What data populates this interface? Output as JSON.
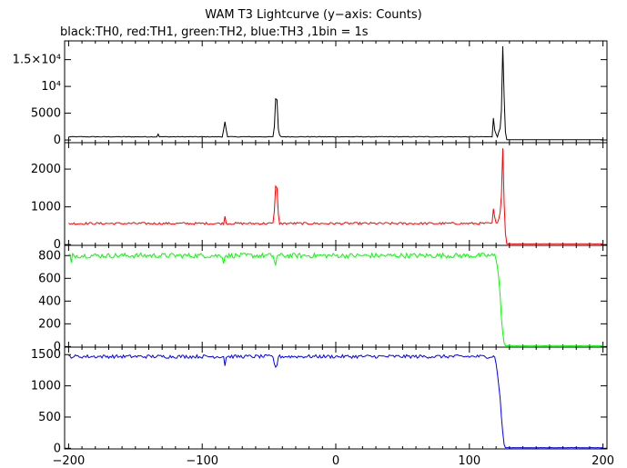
{
  "chart_data": {
    "type": "line",
    "title": "WAM T3 Lightcurve (y−axis: Counts)",
    "subtitle": "black:TH0, red:TH1, green:TH2, blue:TH3 ,1bin = 1s",
    "xlabel": "",
    "ylabel": "",
    "xlim": [
      -203,
      203
    ],
    "x_ticks": [
      -200,
      -100,
      0,
      100,
      200
    ],
    "x_tick_labels": [
      "−200",
      "−100",
      "0",
      "100",
      "200"
    ],
    "bin_size_s": 1,
    "panels": [
      {
        "name": "TH0",
        "color": "#000000",
        "ylim": [
          -500,
          18500
        ],
        "y_ticks": [
          0,
          5000,
          10000,
          15000
        ],
        "y_tick_labels": [
          "0",
          "5000",
          "10⁴",
          "1.5×10⁴"
        ],
        "baseline": 600,
        "noise": 60,
        "spikes": [
          [
            -133,
            1100
          ],
          [
            -84,
            1900
          ],
          [
            -83,
            3400
          ],
          [
            -82,
            1900
          ],
          [
            -46,
            2500
          ],
          [
            -45,
            7700
          ],
          [
            -44,
            7500
          ],
          [
            -43,
            2000
          ],
          [
            -42,
            900
          ],
          [
            118,
            4100
          ],
          [
            119,
            1800
          ],
          [
            120,
            1100
          ],
          [
            122,
            1500
          ],
          [
            123,
            2200
          ],
          [
            124,
            5500
          ],
          [
            125,
            17500
          ],
          [
            126,
            8000
          ],
          [
            127,
            1500
          ],
          [
            128,
            600
          ]
        ],
        "end": [
          128,
          50
        ]
      },
      {
        "name": "TH1",
        "color": "#ff0000",
        "ylim": [
          -20,
          2700
        ],
        "y_ticks": [
          0,
          1000,
          2000
        ],
        "y_tick_labels": [
          "0",
          "1000",
          "2000"
        ],
        "baseline": 560,
        "noise": 30,
        "spikes": [
          [
            -83,
            750
          ],
          [
            -46,
            900
          ],
          [
            -45,
            1550
          ],
          [
            -44,
            1500
          ],
          [
            -43,
            800
          ],
          [
            118,
            950
          ],
          [
            119,
            720
          ],
          [
            122,
            680
          ],
          [
            123,
            850
          ],
          [
            124,
            1300
          ],
          [
            125,
            2550
          ],
          [
            126,
            1100
          ],
          [
            127,
            300
          ],
          [
            128,
            120
          ]
        ],
        "end": [
          128,
          20
        ]
      },
      {
        "name": "TH2",
        "color": "#00ff00",
        "ylim": [
          -5,
          890
        ],
        "y_ticks": [
          0,
          200,
          400,
          600,
          800
        ],
        "y_tick_labels": [
          "0",
          "200",
          "400",
          "600",
          "800"
        ],
        "baseline": 800,
        "noise": 22,
        "spikes": [
          [
            -198,
            740
          ],
          [
            -84,
            730
          ],
          [
            -46,
            750
          ],
          [
            -45,
            720
          ],
          [
            120,
            760
          ],
          [
            121,
            700
          ],
          [
            122,
            600
          ],
          [
            123,
            450
          ],
          [
            124,
            250
          ],
          [
            125,
            120
          ],
          [
            126,
            30
          ]
        ],
        "end": [
          127,
          8
        ]
      },
      {
        "name": "TH3",
        "color": "#0000ff",
        "ylim": [
          -10,
          1620
        ],
        "y_ticks": [
          0,
          500,
          1000,
          1500
        ],
        "y_tick_labels": [
          "0",
          "500",
          "1000",
          "1500"
        ],
        "baseline": 1470,
        "noise": 28,
        "spikes": [
          [
            -83,
            1320
          ],
          [
            -46,
            1350
          ],
          [
            -45,
            1300
          ],
          [
            -44,
            1330
          ],
          [
            120,
            1350
          ],
          [
            121,
            1200
          ],
          [
            122,
            1000
          ],
          [
            123,
            800
          ],
          [
            124,
            500
          ],
          [
            125,
            250
          ],
          [
            126,
            60
          ]
        ],
        "end": [
          127,
          10
        ]
      }
    ]
  }
}
